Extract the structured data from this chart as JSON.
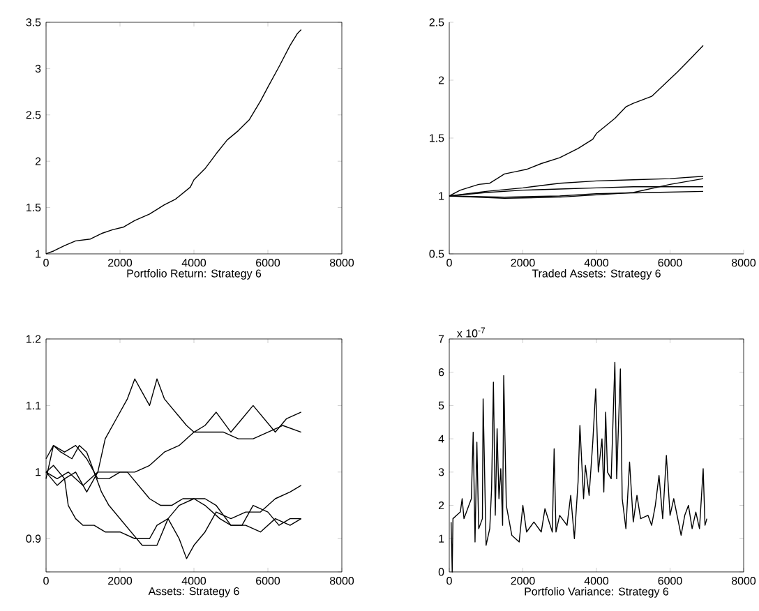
{
  "chart_data": [
    {
      "type": "line",
      "xlabel": "Portfolio Return: Strategy 6",
      "xlim": [
        0,
        8000
      ],
      "xticks": [
        0,
        2000,
        4000,
        6000,
        8000
      ],
      "ylim": [
        1,
        3.5
      ],
      "yticks": [
        1,
        1.5,
        2,
        2.5,
        3,
        3.5
      ],
      "series": [
        {
          "color": "#000000",
          "x": [
            0,
            200,
            500,
            800,
            1000,
            1200,
            1500,
            1800,
            2100,
            2400,
            2800,
            3200,
            3500,
            3900,
            4000,
            4300,
            4600,
            4900,
            5200,
            5500,
            5800,
            6000,
            6300,
            6600,
            6800,
            6900
          ],
          "values": [
            1.0,
            1.03,
            1.09,
            1.14,
            1.15,
            1.16,
            1.22,
            1.26,
            1.29,
            1.36,
            1.43,
            1.53,
            1.59,
            1.72,
            1.8,
            1.92,
            2.08,
            2.23,
            2.33,
            2.45,
            2.65,
            2.8,
            3.02,
            3.25,
            3.38,
            3.42
          ]
        }
      ]
    },
    {
      "type": "line",
      "xlabel": "Traded Assets: Strategy 6",
      "xlim": [
        0,
        8000
      ],
      "xticks": [
        0,
        2000,
        4000,
        6000,
        8000
      ],
      "ylim": [
        0.5,
        2.5
      ],
      "yticks": [
        0.5,
        1,
        1.5,
        2,
        2.5
      ],
      "series": [
        {
          "color": "#000000",
          "x": [
            0,
            300,
            800,
            1100,
            1500,
            1800,
            2100,
            2500,
            3000,
            3500,
            3900,
            4000,
            4500,
            4800,
            5000,
            5500,
            5900,
            6200,
            6600,
            6900
          ],
          "values": [
            1.0,
            1.05,
            1.1,
            1.11,
            1.19,
            1.21,
            1.23,
            1.28,
            1.33,
            1.41,
            1.49,
            1.54,
            1.67,
            1.77,
            1.8,
            1.86,
            1.98,
            2.07,
            2.2,
            2.3
          ]
        },
        {
          "color": "#000000",
          "x": [
            0,
            1000,
            2000,
            3000,
            4000,
            5000,
            6000,
            6900
          ],
          "values": [
            1.0,
            1.04,
            1.07,
            1.11,
            1.13,
            1.14,
            1.15,
            1.17
          ]
        },
        {
          "color": "#000000",
          "x": [
            0,
            1000,
            2000,
            3000,
            4000,
            5000,
            6000,
            6900
          ],
          "values": [
            1.0,
            1.03,
            1.05,
            1.06,
            1.07,
            1.08,
            1.08,
            1.08
          ]
        },
        {
          "color": "#000000",
          "x": [
            0,
            1500,
            3000,
            4000,
            5000,
            6000,
            6900
          ],
          "values": [
            1.0,
            0.98,
            0.99,
            1.01,
            1.03,
            1.1,
            1.15
          ]
        },
        {
          "color": "#000000",
          "x": [
            0,
            1500,
            3000,
            4000,
            5500,
            6900
          ],
          "values": [
            1.0,
            0.99,
            1.0,
            1.02,
            1.03,
            1.04
          ]
        }
      ]
    },
    {
      "type": "line",
      "xlabel": "Assets: Strategy 6",
      "xlim": [
        0,
        8000
      ],
      "xticks": [
        0,
        2000,
        4000,
        6000,
        8000
      ],
      "ylim": [
        0.85,
        1.2
      ],
      "yticks": [
        {
          "value": 0.85,
          "label": null
        },
        0.9,
        1,
        1.1,
        1.2
      ],
      "series": [
        {
          "color": "#000000",
          "x": [
            0,
            200,
            500,
            800,
            1100,
            1400,
            1600,
            1900,
            2200,
            2400,
            2600,
            2800,
            3000,
            3200,
            3500,
            3800,
            4000,
            4300,
            4600,
            5000,
            5300,
            5600,
            5900,
            6200,
            6500,
            6900
          ],
          "values": [
            1.0,
            1.01,
            0.99,
            1.0,
            0.97,
            1.0,
            1.05,
            1.08,
            1.11,
            1.14,
            1.12,
            1.1,
            1.14,
            1.11,
            1.09,
            1.07,
            1.06,
            1.07,
            1.09,
            1.06,
            1.08,
            1.1,
            1.08,
            1.06,
            1.08,
            1.09
          ]
        },
        {
          "color": "#000000",
          "x": [
            0,
            200,
            500,
            800,
            1100,
            1400,
            1700,
            2000,
            2400,
            2800,
            3200,
            3600,
            4000,
            4400,
            4800,
            5200,
            5600,
            6000,
            6400,
            6900
          ],
          "values": [
            1.02,
            1.04,
            1.03,
            1.04,
            1.02,
            0.99,
            0.99,
            1.0,
            1.0,
            1.01,
            1.03,
            1.04,
            1.06,
            1.06,
            1.06,
            1.05,
            1.05,
            1.06,
            1.07,
            1.06
          ]
        },
        {
          "color": "#000000",
          "x": [
            0,
            300,
            600,
            1000,
            1400,
            1800,
            2200,
            2500,
            2800,
            3100,
            3400,
            3700,
            4000,
            4300,
            4600,
            5000,
            5400,
            5800,
            6200,
            6600,
            6900
          ],
          "values": [
            1.0,
            0.99,
            1.0,
            0.98,
            1.0,
            1.0,
            1.0,
            0.98,
            0.96,
            0.95,
            0.95,
            0.96,
            0.96,
            0.96,
            0.95,
            0.92,
            0.92,
            0.91,
            0.93,
            0.92,
            0.93
          ]
        },
        {
          "color": "#000000",
          "x": [
            0,
            300,
            500,
            600,
            800,
            1000,
            1300,
            1600,
            2000,
            2400,
            2800,
            3000,
            3300,
            3600,
            3800,
            4000,
            4300,
            4600,
            5000,
            5400,
            5800,
            6200,
            6600,
            6900
          ],
          "values": [
            1.0,
            0.98,
            0.99,
            0.95,
            0.93,
            0.92,
            0.92,
            0.91,
            0.91,
            0.9,
            0.9,
            0.92,
            0.93,
            0.9,
            0.87,
            0.89,
            0.91,
            0.94,
            0.93,
            0.94,
            0.94,
            0.96,
            0.97,
            0.98
          ]
        },
        {
          "color": "#000000",
          "x": [
            0,
            200,
            400,
            700,
            900,
            1100,
            1300,
            1500,
            1700,
            2000,
            2300,
            2600,
            3000,
            3300,
            3600,
            4000,
            4300,
            4700,
            5000,
            5300,
            5600,
            6000,
            6300,
            6600,
            6900
          ],
          "values": [
            0.99,
            1.04,
            1.03,
            1.02,
            1.04,
            1.03,
            1.0,
            0.97,
            0.95,
            0.93,
            0.91,
            0.89,
            0.89,
            0.93,
            0.95,
            0.96,
            0.95,
            0.93,
            0.92,
            0.92,
            0.95,
            0.94,
            0.92,
            0.93,
            0.93
          ]
        }
      ]
    },
    {
      "type": "line",
      "xlabel": "Portfolio Variance: Strategy 6",
      "annotations": [
        "x 10$^{-7}$"
      ],
      "xlim": [
        0,
        8000
      ],
      "xticks": [
        0,
        2000,
        4000,
        6000,
        8000
      ],
      "ylim": [
        0,
        7
      ],
      "yticks": [
        0,
        1,
        2,
        3,
        4,
        5,
        6,
        7
      ],
      "series": [
        {
          "color": "#000000",
          "x": [
            50,
            80,
            100,
            200,
            300,
            350,
            400,
            500,
            600,
            650,
            700,
            750,
            800,
            900,
            920,
            1000,
            1100,
            1150,
            1200,
            1250,
            1300,
            1350,
            1400,
            1450,
            1480,
            1550,
            1700,
            1900,
            2000,
            2100,
            2300,
            2500,
            2600,
            2800,
            2850,
            2900,
            3000,
            3200,
            3300,
            3400,
            3500,
            3550,
            3650,
            3700,
            3800,
            3900,
            3980,
            4050,
            4150,
            4200,
            4250,
            4300,
            4400,
            4500,
            4550,
            4650,
            4700,
            4800,
            4900,
            5000,
            5100,
            5200,
            5400,
            5500,
            5600,
            5700,
            5800,
            5900,
            6000,
            6100,
            6300,
            6400,
            6500,
            6600,
            6700,
            6800,
            6900,
            6950,
            7000
          ],
          "values": [
            1.5,
            0.0,
            1.6,
            1.7,
            1.8,
            2.2,
            1.6,
            1.9,
            2.2,
            4.2,
            0.9,
            3.9,
            1.3,
            1.6,
            5.2,
            0.8,
            1.3,
            2.5,
            5.7,
            1.7,
            4.3,
            2.2,
            3.1,
            1.4,
            5.9,
            2.0,
            1.1,
            0.9,
            2.0,
            1.2,
            1.5,
            1.2,
            1.9,
            1.2,
            3.7,
            1.2,
            1.7,
            1.4,
            2.3,
            1.0,
            2.7,
            4.4,
            2.2,
            3.2,
            2.3,
            3.9,
            5.5,
            3.0,
            4.0,
            2.4,
            4.8,
            3.0,
            2.8,
            6.3,
            2.8,
            6.1,
            2.2,
            1.3,
            3.3,
            1.5,
            2.3,
            1.6,
            1.7,
            1.4,
            2.0,
            2.9,
            1.6,
            3.5,
            1.7,
            2.2,
            1.1,
            1.7,
            2.0,
            1.3,
            1.8,
            1.3,
            3.1,
            1.4,
            1.6
          ]
        }
      ]
    }
  ]
}
